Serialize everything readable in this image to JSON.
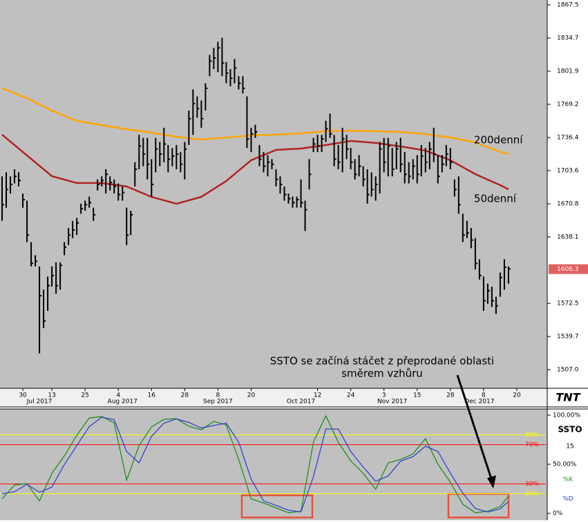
{
  "chart_data": [
    {
      "type": "ohlc",
      "color": "#000000",
      "high": [
        1698,
        1702,
        1698,
        1705,
        1702,
        1681,
        1674,
        1633,
        1620,
        1609,
        1586,
        1599,
        1609,
        1613,
        1613,
        1633,
        1647,
        1654,
        1657,
        1671,
        1674,
        1678,
        1667,
        1695,
        1698,
        1705,
        1698,
        1695,
        1691,
        1688,
        1667,
        1664,
        1712,
        1739,
        1736,
        1736,
        1715,
        1736,
        1732,
        1746,
        1729,
        1726,
        1729,
        1722,
        1732,
        1763,
        1784,
        1777,
        1773,
        1790,
        1818,
        1825,
        1831,
        1835,
        1811,
        1804,
        1814,
        1797,
        1797,
        1777,
        1746,
        1749,
        1729,
        1722,
        1719,
        1715,
        1705,
        1698,
        1688,
        1681,
        1678,
        1678,
        1695,
        1674,
        1715,
        1736,
        1739,
        1739,
        1753,
        1760,
        1739,
        1729,
        1746,
        1739,
        1726,
        1715,
        1719,
        1708,
        1705,
        1702,
        1698,
        1732,
        1736,
        1736,
        1726,
        1732,
        1736,
        1722,
        1712,
        1715,
        1719,
        1729,
        1726,
        1732,
        1746,
        1719,
        1719,
        1729,
        1726,
        1695,
        1698,
        1661,
        1654,
        1647,
        1637,
        1616,
        1599,
        1592,
        1589,
        1579,
        1603,
        1616,
        1609
      ],
      "low": [
        1654,
        1667,
        1681,
        1691,
        1688,
        1667,
        1633,
        1609,
        1609,
        1523,
        1548,
        1565,
        1589,
        1582,
        1586,
        1620,
        1630,
        1637,
        1640,
        1661,
        1664,
        1667,
        1654,
        1684,
        1688,
        1681,
        1684,
        1681,
        1674,
        1674,
        1630,
        1640,
        1688,
        1705,
        1708,
        1695,
        1678,
        1702,
        1708,
        1712,
        1702,
        1708,
        1705,
        1702,
        1695,
        1729,
        1739,
        1756,
        1746,
        1763,
        1797,
        1804,
        1801,
        1797,
        1790,
        1787,
        1790,
        1784,
        1780,
        1726,
        1722,
        1736,
        1708,
        1702,
        1698,
        1705,
        1688,
        1681,
        1674,
        1671,
        1667,
        1667,
        1667,
        1644,
        1685,
        1722,
        1722,
        1722,
        1732,
        1736,
        1708,
        1705,
        1702,
        1715,
        1705,
        1695,
        1698,
        1688,
        1671,
        1678,
        1674,
        1681,
        1702,
        1698,
        1698,
        1705,
        1702,
        1691,
        1691,
        1695,
        1691,
        1698,
        1702,
        1705,
        1712,
        1691,
        1702,
        1708,
        1705,
        1678,
        1661,
        1633,
        1637,
        1627,
        1606,
        1596,
        1565,
        1572,
        1569,
        1562,
        1579,
        1586,
        1592
      ],
      "close": [
        1670,
        1685,
        1690,
        1698,
        1694,
        1675,
        1640,
        1612,
        1614,
        1580,
        1555,
        1590,
        1600,
        1590,
        1610,
        1628,
        1640,
        1645,
        1652,
        1666,
        1670,
        1672,
        1660,
        1690,
        1694,
        1700,
        1692,
        1688,
        1680,
        1682,
        1640,
        1660,
        1705,
        1728,
        1720,
        1710,
        1690,
        1725,
        1720,
        1730,
        1715,
        1718,
        1720,
        1710,
        1725,
        1755,
        1770,
        1765,
        1755,
        1785,
        1812,
        1815,
        1825,
        1810,
        1800,
        1795,
        1805,
        1790,
        1785,
        1735,
        1740,
        1742,
        1715,
        1708,
        1712,
        1710,
        1695,
        1690,
        1680,
        1676,
        1672,
        1675,
        1672,
        1665,
        1700,
        1730,
        1728,
        1735,
        1745,
        1740,
        1715,
        1712,
        1735,
        1725,
        1712,
        1700,
        1708,
        1695,
        1680,
        1685,
        1690,
        1725,
        1712,
        1728,
        1705,
        1725,
        1710,
        1700,
        1698,
        1708,
        1700,
        1718,
        1712,
        1725,
        1720,
        1698,
        1710,
        1720,
        1712,
        1685,
        1670,
        1640,
        1642,
        1635,
        1612,
        1600,
        1575,
        1585,
        1575,
        1570,
        1598,
        1608,
        1606.3
      ],
      "overlays": [
        {
          "label": "200denní",
          "color": "#ffa500",
          "x": [
            0,
            6,
            12,
            18,
            24,
            30,
            36,
            42,
            48,
            54,
            60,
            66,
            72,
            78,
            84,
            90,
            96,
            102,
            108,
            114,
            120,
            122
          ],
          "values": [
            1785,
            1775.3,
            1763,
            1752.8,
            1748.7,
            1744.6,
            1741.2,
            1737.1,
            1734.4,
            1736.4,
            1738.5,
            1739.2,
            1740.5,
            1742.6,
            1743.2,
            1742.6,
            1741.9,
            1739.8,
            1736.4,
            1731.6,
            1722.1,
            1720
          ]
        },
        {
          "label": "50denní",
          "color": "#b22222",
          "x": [
            0,
            6,
            12,
            18,
            24,
            30,
            36,
            42,
            48,
            54,
            60,
            66,
            72,
            78,
            84,
            90,
            96,
            102,
            108,
            114,
            120,
            122
          ],
          "values": [
            1739.2,
            1718.7,
            1698.2,
            1691.4,
            1691.4,
            1688,
            1677.7,
            1670.9,
            1677.7,
            1693.4,
            1713.9,
            1724.1,
            1725.5,
            1728.9,
            1733,
            1731,
            1727.6,
            1723.5,
            1713.9,
            1700.2,
            1689.3,
            1685.2
          ]
        }
      ],
      "annotations": [
        "SSTO se začíná stáčet z přeprodané oblasti",
        "směrem vzhůru"
      ],
      "ylim": [
        1489.9,
        1872.3
      ],
      "yticks": [
        1867.5,
        1834.7,
        1801.9,
        1769.2,
        1736.4,
        1703.6,
        1670.8,
        1638.1,
        1572.5,
        1539.7,
        {
          "value": 1507,
          "label": "1507.0"
        }
      ],
      "xlim": [
        -0.5,
        131
      ],
      "xticks": [
        {
          "value": 5,
          "label": "30"
        },
        {
          "value": 12,
          "label": "13"
        },
        {
          "value": 20,
          "label": "25"
        },
        {
          "value": 28,
          "label": "4"
        },
        {
          "value": 36,
          "label": "16"
        },
        {
          "value": 44,
          "label": "28"
        },
        {
          "value": 52,
          "label": "8"
        },
        {
          "value": 60,
          "label": "20"
        },
        {
          "value": 76,
          "label": "12"
        },
        {
          "value": 84,
          "label": "24"
        },
        {
          "value": 92,
          "label": "3"
        },
        {
          "value": 100,
          "label": "15"
        },
        {
          "value": 108,
          "label": "28"
        },
        {
          "value": 116,
          "label": "8"
        },
        {
          "value": 124,
          "label": "20"
        }
      ],
      "month_labels": [
        {
          "value": 9,
          "label": "Jul 2017"
        },
        {
          "value": 29,
          "label": "Aug 2017"
        },
        {
          "value": 52,
          "label": "Sep 2017"
        },
        {
          "value": 72,
          "label": "Oct 2017"
        },
        {
          "value": 94,
          "label": "Nov 2017"
        },
        {
          "value": 115,
          "label": "Dec 2017"
        }
      ],
      "logo": "TNT"
    },
    {
      "type": "line",
      "title": "SSTO",
      "period": 15,
      "ylim": [
        -6.3,
        106.3
      ],
      "yticks": [
        {
          "value": 100,
          "label": "100.00%"
        },
        {
          "value": 50,
          "label": "50.00%"
        },
        {
          "value": 0,
          "label": "0%"
        }
      ],
      "levels": [
        {
          "value": 80,
          "label": "80%",
          "color": "#ffff00"
        },
        {
          "value": 70,
          "label": "70%",
          "color": "#ff0000"
        },
        {
          "value": 30,
          "label": "30%",
          "color": "#ff0000"
        },
        {
          "value": 20,
          "label": "20%",
          "color": "#ffff00"
        }
      ],
      "series": [
        {
          "name": "%K",
          "color": "#228b22",
          "x": [
            0,
            3,
            6,
            9,
            12,
            15,
            18,
            21,
            24,
            27,
            30,
            33,
            36,
            39,
            42,
            45,
            48,
            51,
            54,
            57,
            60,
            63,
            66,
            69,
            72,
            75,
            78,
            81,
            84,
            87,
            90,
            93,
            96,
            99,
            102,
            105,
            108,
            111,
            114,
            117,
            120,
            122
          ],
          "values": [
            14.8,
            28.9,
            30.3,
            12.7,
            40.8,
            58.5,
            79.6,
            97.2,
            98.6,
            92.3,
            33.8,
            69,
            88,
            95.8,
            96.5,
            88.7,
            85.2,
            93.7,
            90.1,
            54.9,
            14.8,
            10.6,
            5.6,
            0.7,
            2.1,
            72.5,
            99.3,
            72.5,
            53.5,
            40.8,
            24.6,
            51.4,
            54.9,
            60.6,
            76.1,
            50,
            31.7,
            9.2,
            0.7,
            2.1,
            7,
            17.6
          ]
        },
        {
          "name": "%D",
          "color": "#3344cc",
          "x": [
            0,
            3,
            6,
            9,
            12,
            15,
            18,
            21,
            24,
            27,
            30,
            33,
            36,
            39,
            42,
            45,
            48,
            51,
            54,
            57,
            60,
            63,
            66,
            69,
            72,
            75,
            78,
            81,
            84,
            87,
            90,
            93,
            96,
            99,
            102,
            105,
            108,
            111,
            114,
            117,
            120,
            122
          ],
          "values": [
            20,
            22,
            29.6,
            21.5,
            26.8,
            49.7,
            69,
            88.4,
            97.9,
            95.5,
            63,
            51.4,
            78.5,
            91.9,
            96.2,
            92.6,
            87,
            89.5,
            91.9,
            72.5,
            34.9,
            12.7,
            8.1,
            3.2,
            1.4,
            37.3,
            85.9,
            85.9,
            63,
            47.2,
            32.7,
            38,
            53.2,
            57.8,
            68.4,
            63.1,
            40.9,
            20.5,
            5,
            1.4,
            4.6,
            12.3
          ]
        }
      ]
    }
  ]
}
